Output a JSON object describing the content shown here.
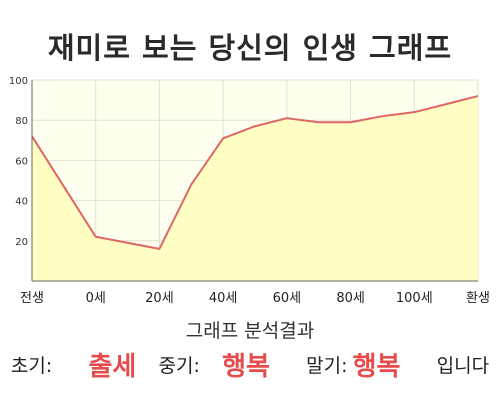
{
  "title": "재미로 보는 당신의 인생 그래프",
  "analysis_title": "그래프 분석결과",
  "analysis": {
    "early_label": "초기:",
    "early_value": "출세",
    "mid_label": "중기:",
    "mid_value": "행복",
    "late_label": "말기:",
    "late_value": "행복",
    "ending": "입니다"
  },
  "colors": {
    "line": "#e06666",
    "fill": "#ffffc4",
    "plot_bg": "#fffff0",
    "accent_text": "#e74c4c"
  },
  "chart_data": {
    "type": "area",
    "categories": [
      "전생",
      "0세",
      "20세",
      "40세",
      "60세",
      "80세",
      "100세",
      "환생"
    ],
    "x": [
      -20,
      0,
      20,
      40,
      60,
      80,
      100,
      120
    ],
    "y": [
      72,
      22,
      16,
      71,
      81,
      79,
      84,
      92
    ],
    "point_x": [
      -20,
      0,
      20,
      30,
      40,
      50,
      60,
      70,
      80,
      90,
      100,
      110,
      120
    ],
    "point_y": [
      72,
      22,
      16,
      48,
      71,
      77,
      81,
      79,
      79,
      82,
      84,
      88,
      92
    ],
    "y_ticks": [
      20,
      40,
      60,
      80,
      100
    ],
    "ylim": [
      0,
      100
    ],
    "xlim": [
      -20,
      120
    ],
    "grid": true,
    "xlabel": "",
    "ylabel": ""
  }
}
